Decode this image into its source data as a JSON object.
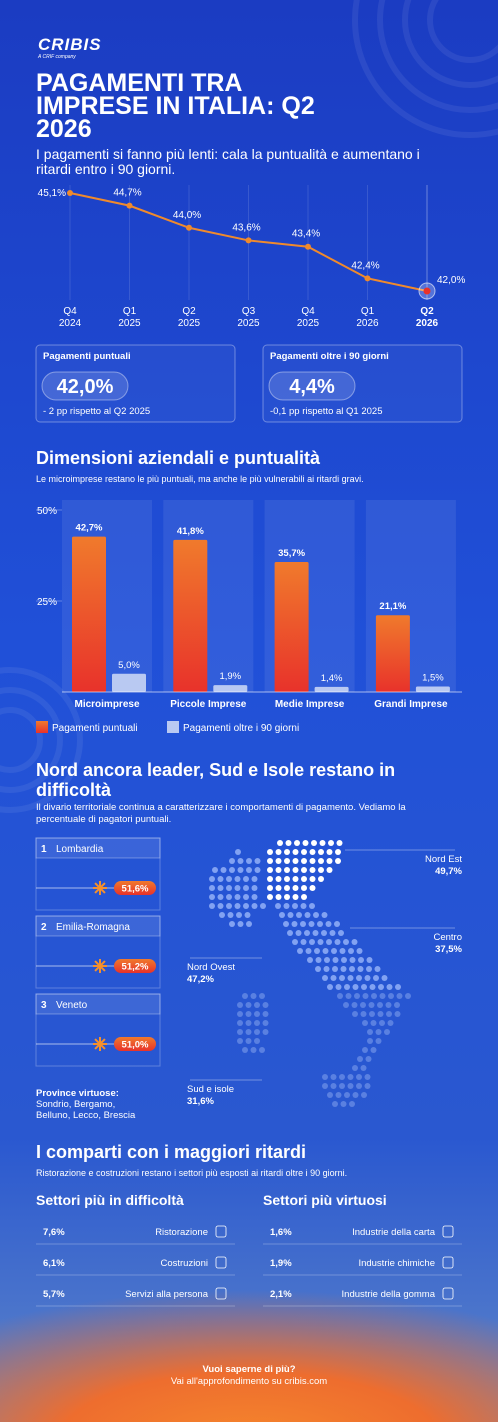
{
  "logo": {
    "brand": "CRIBIS",
    "tagline": "A CRIF company"
  },
  "header": {
    "title": "PAGAMENTI TRA IMPRESE IN ITALIA: Q2 2026",
    "subtitle": "I pagamenti si fanno più lenti: cala la puntualità e aumentano i ritardi entro i 90 giorni."
  },
  "chart_data": [
    {
      "type": "line",
      "categories": [
        "Q4 2024",
        "Q1 2025",
        "Q2 2025",
        "Q3 2025",
        "Q4 2025",
        "Q1 2026",
        "Q2 2026"
      ],
      "values": [
        45.1,
        44.7,
        44.0,
        43.6,
        43.4,
        42.4,
        42.0
      ],
      "value_labels": [
        "45,1%",
        "44,7%",
        "44,0%",
        "43,6%",
        "43,4%",
        "42,4%",
        "42,0%"
      ],
      "color": "#f08a2c",
      "highlight_color": "#e8322b"
    },
    {
      "type": "bar",
      "title": "Dimensioni aziendali e puntualità",
      "subtitle": "Le microimprese restano le più puntuali, ma anche le più vulnerabili ai ritardi gravi.",
      "categories": [
        "Microimprese",
        "Piccole Imprese",
        "Medie Imprese",
        "Grandi Imprese"
      ],
      "series": [
        {
          "name": "Pagamenti puntuali",
          "color": "#f2552c",
          "values": [
            42.7,
            41.8,
            35.7,
            21.1
          ],
          "value_labels": [
            "42,7%",
            "41,8%",
            "35,7%",
            "21,1%"
          ]
        },
        {
          "name": "Pagamenti oltre i 90 giorni",
          "color": "#b9c9f2",
          "values": [
            5.0,
            1.9,
            1.4,
            1.5
          ],
          "value_labels": [
            "5,0%",
            "1,9%",
            "1,4%",
            "1,5%"
          ]
        }
      ],
      "ylim": [
        0,
        50
      ],
      "yticks": [
        {
          "value": 25,
          "label": "25%"
        },
        {
          "value": 50,
          "label": "50%"
        }
      ],
      "legend": "bottom"
    }
  ],
  "kpis": [
    {
      "title": "Pagamenti puntuali",
      "value": "42,0%",
      "note": "- 2 pp rispetto al Q2 2025"
    },
    {
      "title": "Pagamenti oltre i 90 giorni",
      "value": "4,4%",
      "note": "-0,1 pp rispetto al Q1 2025"
    }
  ],
  "regions": {
    "title": "Nord ancora leader, Sud e Isole restano in difficoltà",
    "subtitle": "Il divario territoriale continua a caratterizzare i comportamenti di pagamento. Vediamo la percentuale di pagatori puntuali.",
    "ranking": [
      {
        "rank": "1",
        "name": "Lombardia",
        "value": "51,6%"
      },
      {
        "rank": "2",
        "name": "Emilia-Romagna",
        "value": "51,2%"
      },
      {
        "rank": "3",
        "name": "Veneto",
        "value": "51,0%"
      }
    ],
    "provinces_title": "Province virtuose:",
    "provinces": "Sondrio, Bergamo, Belluno, Lecco, Brescia",
    "areas": [
      {
        "name": "Nord Est",
        "value": "49,7%"
      },
      {
        "name": "Centro",
        "value": "37,5%"
      },
      {
        "name": "Nord Ovest",
        "value": "47,2%"
      },
      {
        "name": "Sud e isole",
        "value": "31,6%"
      }
    ]
  },
  "sectors": {
    "title": "I comparti con i maggiori ritardi",
    "subtitle": "Ristorazione e costruzioni restano i settori più esposti ai ritardi oltre i 90 giorni.",
    "worst": {
      "title": "Settori più in difficoltà",
      "items": [
        {
          "value": "7,6%",
          "name": "Ristorazione"
        },
        {
          "value": "6,1%",
          "name": "Costruzioni"
        },
        {
          "value": "5,7%",
          "name": "Servizi alla persona"
        }
      ]
    },
    "best": {
      "title": "Settori più virtuosi",
      "items": [
        {
          "value": "1,6%",
          "name": "Industrie della carta"
        },
        {
          "value": "1,9%",
          "name": "Industrie chimiche"
        },
        {
          "value": "2,1%",
          "name": "Industrie della gomma"
        }
      ]
    }
  },
  "footer": {
    "question": "Vuoi saperne di più?",
    "link": "Vai all'approfondimento su cribis.com"
  }
}
